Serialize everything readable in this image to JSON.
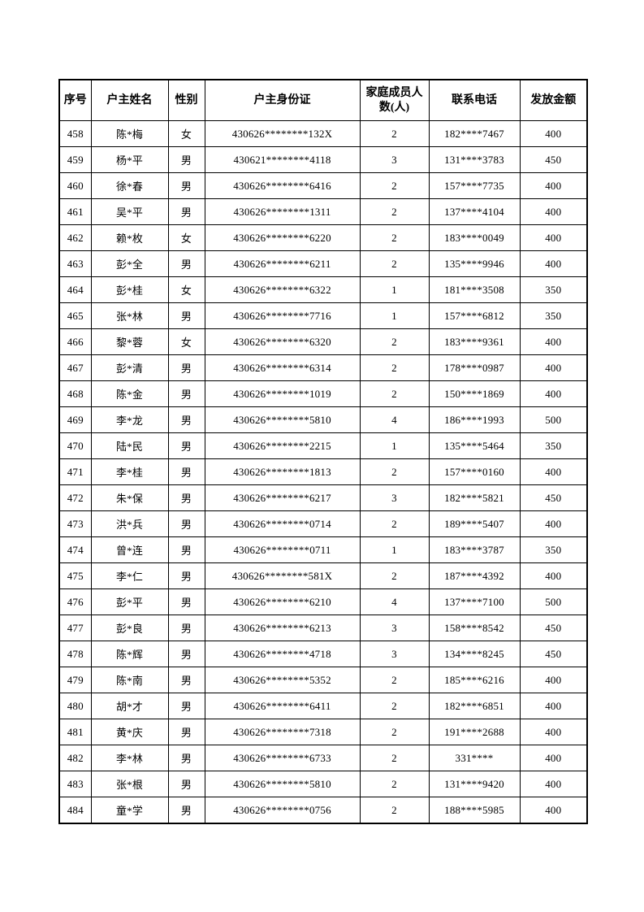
{
  "table": {
    "columns": [
      {
        "key": "index",
        "label": "序号"
      },
      {
        "key": "name",
        "label": "户主姓名"
      },
      {
        "key": "gender",
        "label": "性别"
      },
      {
        "key": "id_number",
        "label": "户主身份证"
      },
      {
        "key": "family_members",
        "label": "家庭成员人数(人)"
      },
      {
        "key": "phone",
        "label": "联系电话"
      },
      {
        "key": "amount",
        "label": "发放金额"
      }
    ],
    "rows": [
      {
        "index": "458",
        "name": "陈*梅",
        "gender": "女",
        "id_number": "430626********132X",
        "family_members": "2",
        "phone": "182****7467",
        "amount": "400"
      },
      {
        "index": "459",
        "name": "杨*平",
        "gender": "男",
        "id_number": "430621********4118",
        "family_members": "3",
        "phone": "131****3783",
        "amount": "450"
      },
      {
        "index": "460",
        "name": "徐*春",
        "gender": "男",
        "id_number": "430626********6416",
        "family_members": "2",
        "phone": "157****7735",
        "amount": "400"
      },
      {
        "index": "461",
        "name": "吴*平",
        "gender": "男",
        "id_number": "430626********1311",
        "family_members": "2",
        "phone": "137****4104",
        "amount": "400"
      },
      {
        "index": "462",
        "name": "赖*枚",
        "gender": "女",
        "id_number": "430626********6220",
        "family_members": "2",
        "phone": "183****0049",
        "amount": "400"
      },
      {
        "index": "463",
        "name": "彭*全",
        "gender": "男",
        "id_number": "430626********6211",
        "family_members": "2",
        "phone": "135****9946",
        "amount": "400"
      },
      {
        "index": "464",
        "name": "彭*桂",
        "gender": "女",
        "id_number": "430626********6322",
        "family_members": "1",
        "phone": "181****3508",
        "amount": "350"
      },
      {
        "index": "465",
        "name": "张*林",
        "gender": "男",
        "id_number": "430626********7716",
        "family_members": "1",
        "phone": "157****6812",
        "amount": "350"
      },
      {
        "index": "466",
        "name": "黎*蓉",
        "gender": "女",
        "id_number": "430626********6320",
        "family_members": "2",
        "phone": "183****9361",
        "amount": "400"
      },
      {
        "index": "467",
        "name": "彭*清",
        "gender": "男",
        "id_number": "430626********6314",
        "family_members": "2",
        "phone": "178****0987",
        "amount": "400"
      },
      {
        "index": "468",
        "name": "陈*金",
        "gender": "男",
        "id_number": "430626********1019",
        "family_members": "2",
        "phone": "150****1869",
        "amount": "400"
      },
      {
        "index": "469",
        "name": "李*龙",
        "gender": "男",
        "id_number": "430626********5810",
        "family_members": "4",
        "phone": "186****1993",
        "amount": "500"
      },
      {
        "index": "470",
        "name": "陆*民",
        "gender": "男",
        "id_number": "430626********2215",
        "family_members": "1",
        "phone": "135****5464",
        "amount": "350"
      },
      {
        "index": "471",
        "name": "李*桂",
        "gender": "男",
        "id_number": "430626********1813",
        "family_members": "2",
        "phone": "157****0160",
        "amount": "400"
      },
      {
        "index": "472",
        "name": "朱*保",
        "gender": "男",
        "id_number": "430626********6217",
        "family_members": "3",
        "phone": "182****5821",
        "amount": "450"
      },
      {
        "index": "473",
        "name": "洪*兵",
        "gender": "男",
        "id_number": "430626********0714",
        "family_members": "2",
        "phone": "189****5407",
        "amount": "400"
      },
      {
        "index": "474",
        "name": "曾*连",
        "gender": "男",
        "id_number": "430626********0711",
        "family_members": "1",
        "phone": "183****3787",
        "amount": "350"
      },
      {
        "index": "475",
        "name": "李*仁",
        "gender": "男",
        "id_number": "430626********581X",
        "family_members": "2",
        "phone": "187****4392",
        "amount": "400"
      },
      {
        "index": "476",
        "name": "彭*平",
        "gender": "男",
        "id_number": "430626********6210",
        "family_members": "4",
        "phone": "137****7100",
        "amount": "500"
      },
      {
        "index": "477",
        "name": "彭*良",
        "gender": "男",
        "id_number": "430626********6213",
        "family_members": "3",
        "phone": "158****8542",
        "amount": "450"
      },
      {
        "index": "478",
        "name": "陈*辉",
        "gender": "男",
        "id_number": "430626********4718",
        "family_members": "3",
        "phone": "134****8245",
        "amount": "450"
      },
      {
        "index": "479",
        "name": "陈*南",
        "gender": "男",
        "id_number": "430626********5352",
        "family_members": "2",
        "phone": "185****6216",
        "amount": "400"
      },
      {
        "index": "480",
        "name": "胡*才",
        "gender": "男",
        "id_number": "430626********6411",
        "family_members": "2",
        "phone": "182****6851",
        "amount": "400"
      },
      {
        "index": "481",
        "name": "黄*庆",
        "gender": "男",
        "id_number": "430626********7318",
        "family_members": "2",
        "phone": "191****2688",
        "amount": "400"
      },
      {
        "index": "482",
        "name": "李*林",
        "gender": "男",
        "id_number": "430626********6733",
        "family_members": "2",
        "phone": "331****",
        "amount": "400"
      },
      {
        "index": "483",
        "name": "张*根",
        "gender": "男",
        "id_number": "430626********5810",
        "family_members": "2",
        "phone": "131****9420",
        "amount": "400"
      },
      {
        "index": "484",
        "name": "童*学",
        "gender": "男",
        "id_number": "430626********0756",
        "family_members": "2",
        "phone": "188****5985",
        "amount": "400"
      }
    ]
  }
}
